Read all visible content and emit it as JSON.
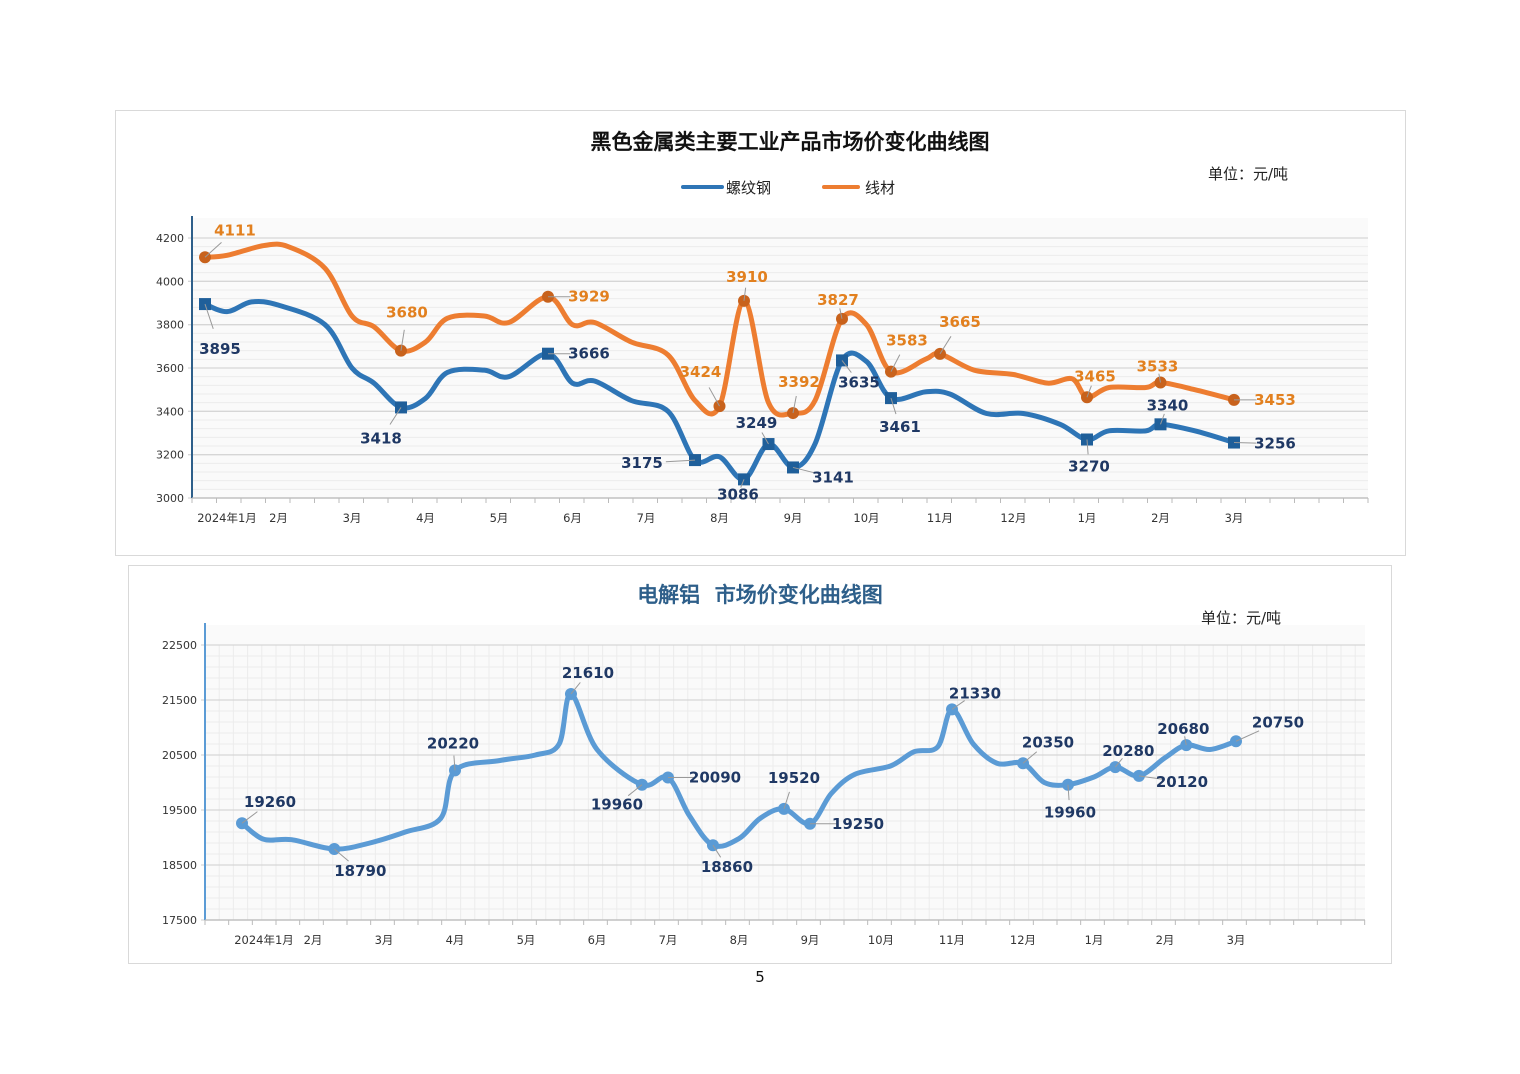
{
  "page_number": "5",
  "chart_data": [
    {
      "type": "line",
      "title": "黑色金属类主要工业产品市场价变化曲线图",
      "unit_label": "单位：元/吨",
      "ylim": [
        3000,
        4200
      ],
      "yticks": [
        "3000",
        "3200",
        "3400",
        "3600",
        "3800",
        "4000",
        "4200"
      ],
      "xticks": [
        {
          "date": "2024-01-01",
          "label": "2024年1月"
        },
        {
          "date": "2024-02-01",
          "label": "2月"
        },
        {
          "date": "2024-03-01",
          "label": "3月"
        },
        {
          "date": "2024-04-01",
          "label": "4月"
        },
        {
          "date": "2024-05-01",
          "label": "5月"
        },
        {
          "date": "2024-06-01",
          "label": "6月"
        },
        {
          "date": "2024-07-01",
          "label": "7月"
        },
        {
          "date": "2024-08-01",
          "label": "8月"
        },
        {
          "date": "2024-09-01",
          "label": "9月"
        },
        {
          "date": "2024-10-01",
          "label": "10月"
        },
        {
          "date": "2024-11-01",
          "label": "11月"
        },
        {
          "date": "2024-12-01",
          "label": "12月"
        },
        {
          "date": "2025-01-01",
          "label": "1月"
        },
        {
          "date": "2025-02-01",
          "label": "2月"
        },
        {
          "date": "2025-03-01",
          "label": "3月"
        }
      ],
      "grid": "horizontal",
      "legend_position": "top-center",
      "series": [
        {
          "name": "螺纹钢",
          "color": "#2e75b6",
          "label_color": "#1f3864",
          "marker": "square",
          "points": [
            [
              "2024-01-01",
              3895,
              true
            ],
            [
              "2024-01-10",
              3860,
              false
            ],
            [
              "2024-01-20",
              3905,
              false
            ],
            [
              "2024-02-01",
              3890,
              false
            ],
            [
              "2024-02-20",
              3800,
              false
            ],
            [
              "2024-03-01",
              3600,
              false
            ],
            [
              "2024-03-10",
              3530,
              false
            ],
            [
              "2024-03-21",
              3418,
              true
            ],
            [
              "2024-04-01",
              3460,
              false
            ],
            [
              "2024-04-10",
              3580,
              false
            ],
            [
              "2024-04-25",
              3590,
              false
            ],
            [
              "2024-05-05",
              3560,
              false
            ],
            [
              "2024-05-21",
              3666,
              true
            ],
            [
              "2024-06-01",
              3530,
              false
            ],
            [
              "2024-06-10",
              3540,
              false
            ],
            [
              "2024-06-25",
              3450,
              false
            ],
            [
              "2024-07-10",
              3400,
              false
            ],
            [
              "2024-07-21",
              3175,
              true
            ],
            [
              "2024-08-01",
              3190,
              false
            ],
            [
              "2024-08-11",
              3086,
              true
            ],
            [
              "2024-08-21",
              3249,
              true
            ],
            [
              "2024-09-01",
              3141,
              true
            ],
            [
              "2024-09-10",
              3250,
              false
            ],
            [
              "2024-09-21",
              3635,
              true
            ],
            [
              "2024-10-01",
              3630,
              false
            ],
            [
              "2024-10-11",
              3461,
              true
            ],
            [
              "2024-10-25",
              3490,
              false
            ],
            [
              "2024-11-05",
              3480,
              false
            ],
            [
              "2024-11-20",
              3390,
              false
            ],
            [
              "2024-12-05",
              3390,
              false
            ],
            [
              "2024-12-20",
              3340,
              false
            ],
            [
              "2025-01-01",
              3270,
              true
            ],
            [
              "2025-01-10",
              3310,
              false
            ],
            [
              "2025-01-25",
              3310,
              false
            ],
            [
              "2025-02-01",
              3340,
              true
            ],
            [
              "2025-02-15",
              3310,
              false
            ],
            [
              "2025-03-01",
              3256,
              true
            ]
          ]
        },
        {
          "name": "线材",
          "color": "#ed7d31",
          "label_color": "#e2801f",
          "marker": "circle",
          "points": [
            [
              "2024-01-01",
              4111,
              true
            ],
            [
              "2024-01-10",
              4120,
              false
            ],
            [
              "2024-01-25",
              4165,
              false
            ],
            [
              "2024-02-05",
              4160,
              false
            ],
            [
              "2024-02-20",
              4060,
              false
            ],
            [
              "2024-03-01",
              3840,
              false
            ],
            [
              "2024-03-10",
              3790,
              false
            ],
            [
              "2024-03-21",
              3680,
              true
            ],
            [
              "2024-04-01",
              3720,
              false
            ],
            [
              "2024-04-10",
              3830,
              false
            ],
            [
              "2024-04-25",
              3840,
              false
            ],
            [
              "2024-05-05",
              3810,
              false
            ],
            [
              "2024-05-21",
              3929,
              true
            ],
            [
              "2024-06-01",
              3800,
              false
            ],
            [
              "2024-06-10",
              3810,
              false
            ],
            [
              "2024-06-25",
              3720,
              false
            ],
            [
              "2024-07-10",
              3660,
              false
            ],
            [
              "2024-07-21",
              3450,
              false
            ],
            [
              "2024-08-01",
              3424,
              true
            ],
            [
              "2024-08-11",
              3910,
              true
            ],
            [
              "2024-08-21",
              3440,
              false
            ],
            [
              "2024-09-01",
              3392,
              true
            ],
            [
              "2024-09-10",
              3450,
              false
            ],
            [
              "2024-09-21",
              3827,
              true
            ],
            [
              "2024-10-01",
              3800,
              false
            ],
            [
              "2024-10-11",
              3583,
              true
            ],
            [
              "2024-10-25",
              3640,
              false
            ],
            [
              "2024-11-01",
              3665,
              true
            ],
            [
              "2024-11-15",
              3590,
              false
            ],
            [
              "2024-12-01",
              3570,
              false
            ],
            [
              "2024-12-15",
              3530,
              false
            ],
            [
              "2024-12-25",
              3550,
              false
            ],
            [
              "2025-01-01",
              3465,
              true
            ],
            [
              "2025-01-10",
              3510,
              false
            ],
            [
              "2025-01-25",
              3510,
              false
            ],
            [
              "2025-02-01",
              3533,
              true
            ],
            [
              "2025-02-15",
              3500,
              false
            ],
            [
              "2025-03-01",
              3453,
              true
            ]
          ]
        }
      ]
    },
    {
      "type": "line",
      "title": "电解铝  市场价变化曲线图",
      "unit_label": "单位：元/吨",
      "ylim": [
        17500,
        22500
      ],
      "yticks": [
        "17500",
        "18500",
        "19500",
        "20500",
        "21500",
        "22500"
      ],
      "xticks": [
        {
          "date": "2024-01-01",
          "label": "2024年1月"
        },
        {
          "date": "2024-02-01",
          "label": "2月"
        },
        {
          "date": "2024-03-01",
          "label": "3月"
        },
        {
          "date": "2024-04-01",
          "label": "4月"
        },
        {
          "date": "2024-05-01",
          "label": "5月"
        },
        {
          "date": "2024-06-01",
          "label": "6月"
        },
        {
          "date": "2024-07-01",
          "label": "7月"
        },
        {
          "date": "2024-08-01",
          "label": "8月"
        },
        {
          "date": "2024-09-01",
          "label": "9月"
        },
        {
          "date": "2024-10-01",
          "label": "10月"
        },
        {
          "date": "2024-11-01",
          "label": "11月"
        },
        {
          "date": "2024-12-01",
          "label": "12月"
        },
        {
          "date": "2025-01-01",
          "label": "1月"
        },
        {
          "date": "2025-02-01",
          "label": "2月"
        },
        {
          "date": "2025-03-01",
          "label": "3月"
        }
      ],
      "grid": "both",
      "series": [
        {
          "color": "#5b9bd5",
          "label_color": "#1f3864",
          "marker": "circle",
          "points": [
            [
              "2024-01-01",
              19260,
              true
            ],
            [
              "2024-01-10",
              18970,
              false
            ],
            [
              "2024-01-22",
              18960,
              false
            ],
            [
              "2024-02-10",
              18790,
              true
            ],
            [
              "2024-02-25",
              18900,
              false
            ],
            [
              "2024-03-10",
              19100,
              false
            ],
            [
              "2024-03-25",
              19350,
              false
            ],
            [
              "2024-04-01",
              20220,
              true
            ],
            [
              "2024-04-20",
              20400,
              false
            ],
            [
              "2024-05-05",
              20500,
              false
            ],
            [
              "2024-05-15",
              20700,
              false
            ],
            [
              "2024-05-20",
              21610,
              true
            ],
            [
              "2024-06-01",
              20600,
              false
            ],
            [
              "2024-06-20",
              19960,
              true
            ],
            [
              "2024-07-01",
              20090,
              true
            ],
            [
              "2024-07-10",
              19400,
              false
            ],
            [
              "2024-07-20",
              18860,
              true
            ],
            [
              "2024-08-01",
              18980,
              false
            ],
            [
              "2024-08-10",
              19350,
              false
            ],
            [
              "2024-08-20",
              19520,
              true
            ],
            [
              "2024-09-01",
              19250,
              true
            ],
            [
              "2024-09-10",
              19800,
              false
            ],
            [
              "2024-09-20",
              20150,
              false
            ],
            [
              "2024-10-05",
              20300,
              false
            ],
            [
              "2024-10-15",
              20560,
              false
            ],
            [
              "2024-10-25",
              20650,
              false
            ],
            [
              "2024-11-01",
              21330,
              true
            ],
            [
              "2024-11-10",
              20700,
              false
            ],
            [
              "2024-11-20",
              20350,
              false
            ],
            [
              "2024-12-01",
              20350,
              true
            ],
            [
              "2024-12-10",
              20000,
              false
            ],
            [
              "2024-12-20",
              19960,
              true
            ],
            [
              "2025-01-01",
              20100,
              false
            ],
            [
              "2025-01-10",
              20280,
              true
            ],
            [
              "2025-01-20",
              20120,
              true
            ],
            [
              "2025-02-01",
              20450,
              false
            ],
            [
              "2025-02-10",
              20680,
              true
            ],
            [
              "2025-02-20",
              20600,
              false
            ],
            [
              "2025-03-01",
              20750,
              true
            ]
          ]
        }
      ]
    }
  ]
}
